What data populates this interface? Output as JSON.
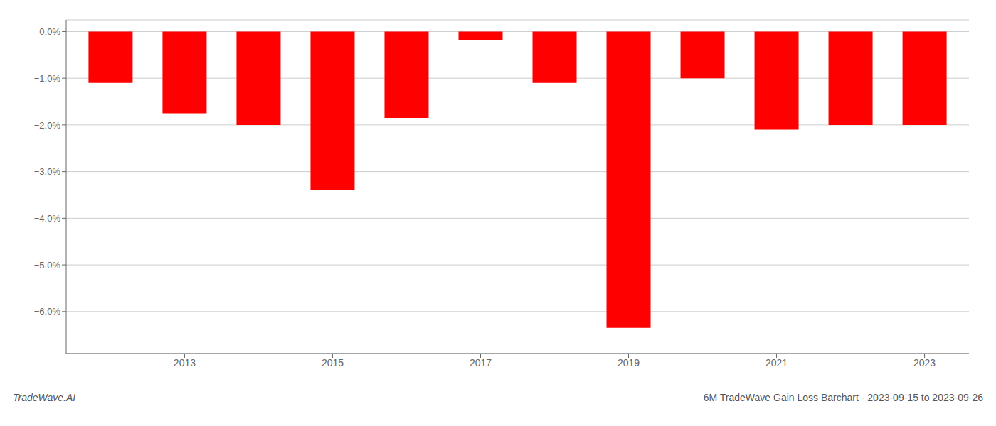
{
  "chart_data": {
    "type": "bar",
    "x": [
      2012,
      2013,
      2014,
      2015,
      2016,
      2017,
      2018,
      2019,
      2020,
      2021,
      2022,
      2023
    ],
    "values": [
      -1.1,
      -1.75,
      -2.0,
      -3.4,
      -1.85,
      -0.18,
      -1.1,
      -6.35,
      -1.0,
      -2.1,
      -2.0,
      -2.0
    ],
    "color": "#ff0000",
    "xlim": [
      2011.4,
      2023.6
    ],
    "xticks": [
      2013,
      2015,
      2017,
      2019,
      2021,
      2023
    ],
    "ylim": [
      -6.9,
      0.25
    ],
    "yticks": [
      {
        "value": 0.0,
        "label": "0.0%"
      },
      {
        "value": -1.0,
        "label": "−1.0%"
      },
      {
        "value": -2.0,
        "label": "−2.0%"
      },
      {
        "value": -3.0,
        "label": "−3.0%"
      },
      {
        "value": -4.0,
        "label": "−4.0%"
      },
      {
        "value": -5.0,
        "label": "−5.0%"
      },
      {
        "value": -6.0,
        "label": "−6.0%"
      }
    ],
    "grid": true,
    "annotations": [
      "TradeWave.AI",
      "6M TradeWave Gain Loss Barchart - 2023-09-15 to 2023-09-26"
    ]
  }
}
